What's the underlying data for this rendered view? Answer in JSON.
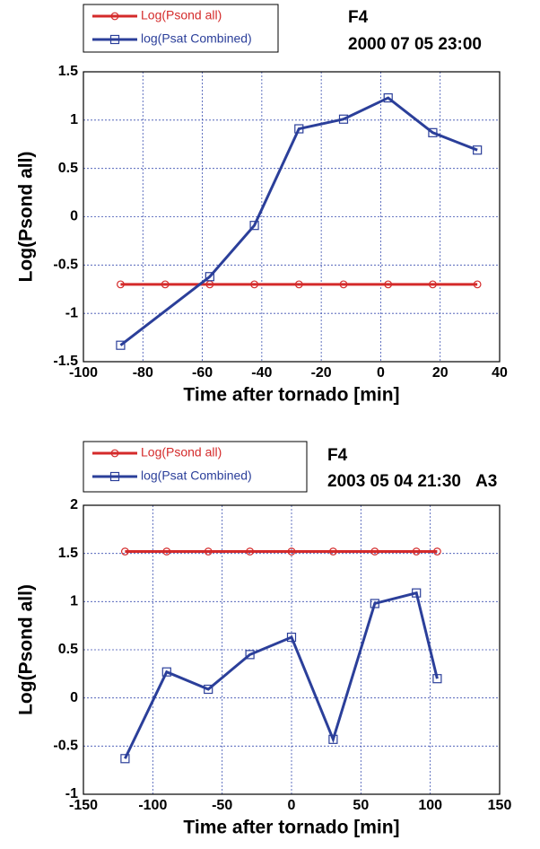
{
  "chart_data": [
    {
      "type": "line",
      "title": "F4",
      "subtitle": "2000 07 05 23:00",
      "x_label": "Time after tornado [min]",
      "y_label": "Log(Psond all)",
      "xlim": [
        -100,
        40
      ],
      "xticks": [
        -100,
        -80,
        -60,
        -40,
        -20,
        0,
        20,
        40
      ],
      "ylim": [
        -1.5,
        1.5
      ],
      "yticks": [
        -1.5,
        -1,
        -0.5,
        0,
        0.5,
        1,
        1.5
      ],
      "grid": true,
      "series": [
        {
          "name": "Log(Psond all)",
          "color": "#d42a2a",
          "marker": "circle",
          "x": [
            -87.5,
            -72.5,
            -57.5,
            -42.5,
            -27.5,
            -12.5,
            2.5,
            17.5,
            32.5
          ],
          "values": [
            -0.7,
            -0.7,
            -0.7,
            -0.7,
            -0.7,
            -0.7,
            -0.7,
            -0.7,
            -0.7
          ]
        },
        {
          "name": "log(Psat Combined)",
          "color": "#2b3f9a",
          "marker": "square",
          "x": [
            -87.5,
            -57.5,
            -42.5,
            -27.5,
            -12.5,
            2.5,
            17.5,
            32.5
          ],
          "values": [
            -1.33,
            -0.62,
            -0.09,
            0.91,
            1.01,
            1.23,
            0.87,
            0.69
          ]
        }
      ]
    },
    {
      "type": "line",
      "title": "F4",
      "subtitle": "2003 05 04 21:30",
      "annotation": "A3",
      "x_label": "Time after tornado [min]",
      "y_label": "Log(Psond all)",
      "xlim": [
        -150,
        150
      ],
      "xticks": [
        -150,
        -100,
        -50,
        0,
        50,
        100,
        150
      ],
      "ylim": [
        -1,
        2
      ],
      "yticks": [
        -1,
        -0.5,
        0,
        0.5,
        1,
        1.5,
        2
      ],
      "grid": true,
      "series": [
        {
          "name": "Log(Psond all)",
          "color": "#d42a2a",
          "marker": "circle",
          "x": [
            -120,
            -90,
            -60,
            -30,
            0,
            30,
            60,
            90,
            105
          ],
          "values": [
            1.52,
            1.52,
            1.52,
            1.52,
            1.52,
            1.52,
            1.52,
            1.52,
            1.52
          ]
        },
        {
          "name": "log(Psat Combined)",
          "color": "#2b3f9a",
          "marker": "square",
          "x": [
            -120,
            -90,
            -60,
            -30,
            0,
            30,
            60,
            90,
            105
          ],
          "values": [
            -0.63,
            0.27,
            0.09,
            0.45,
            0.63,
            -0.43,
            0.98,
            1.09,
            0.2
          ]
        }
      ]
    }
  ]
}
